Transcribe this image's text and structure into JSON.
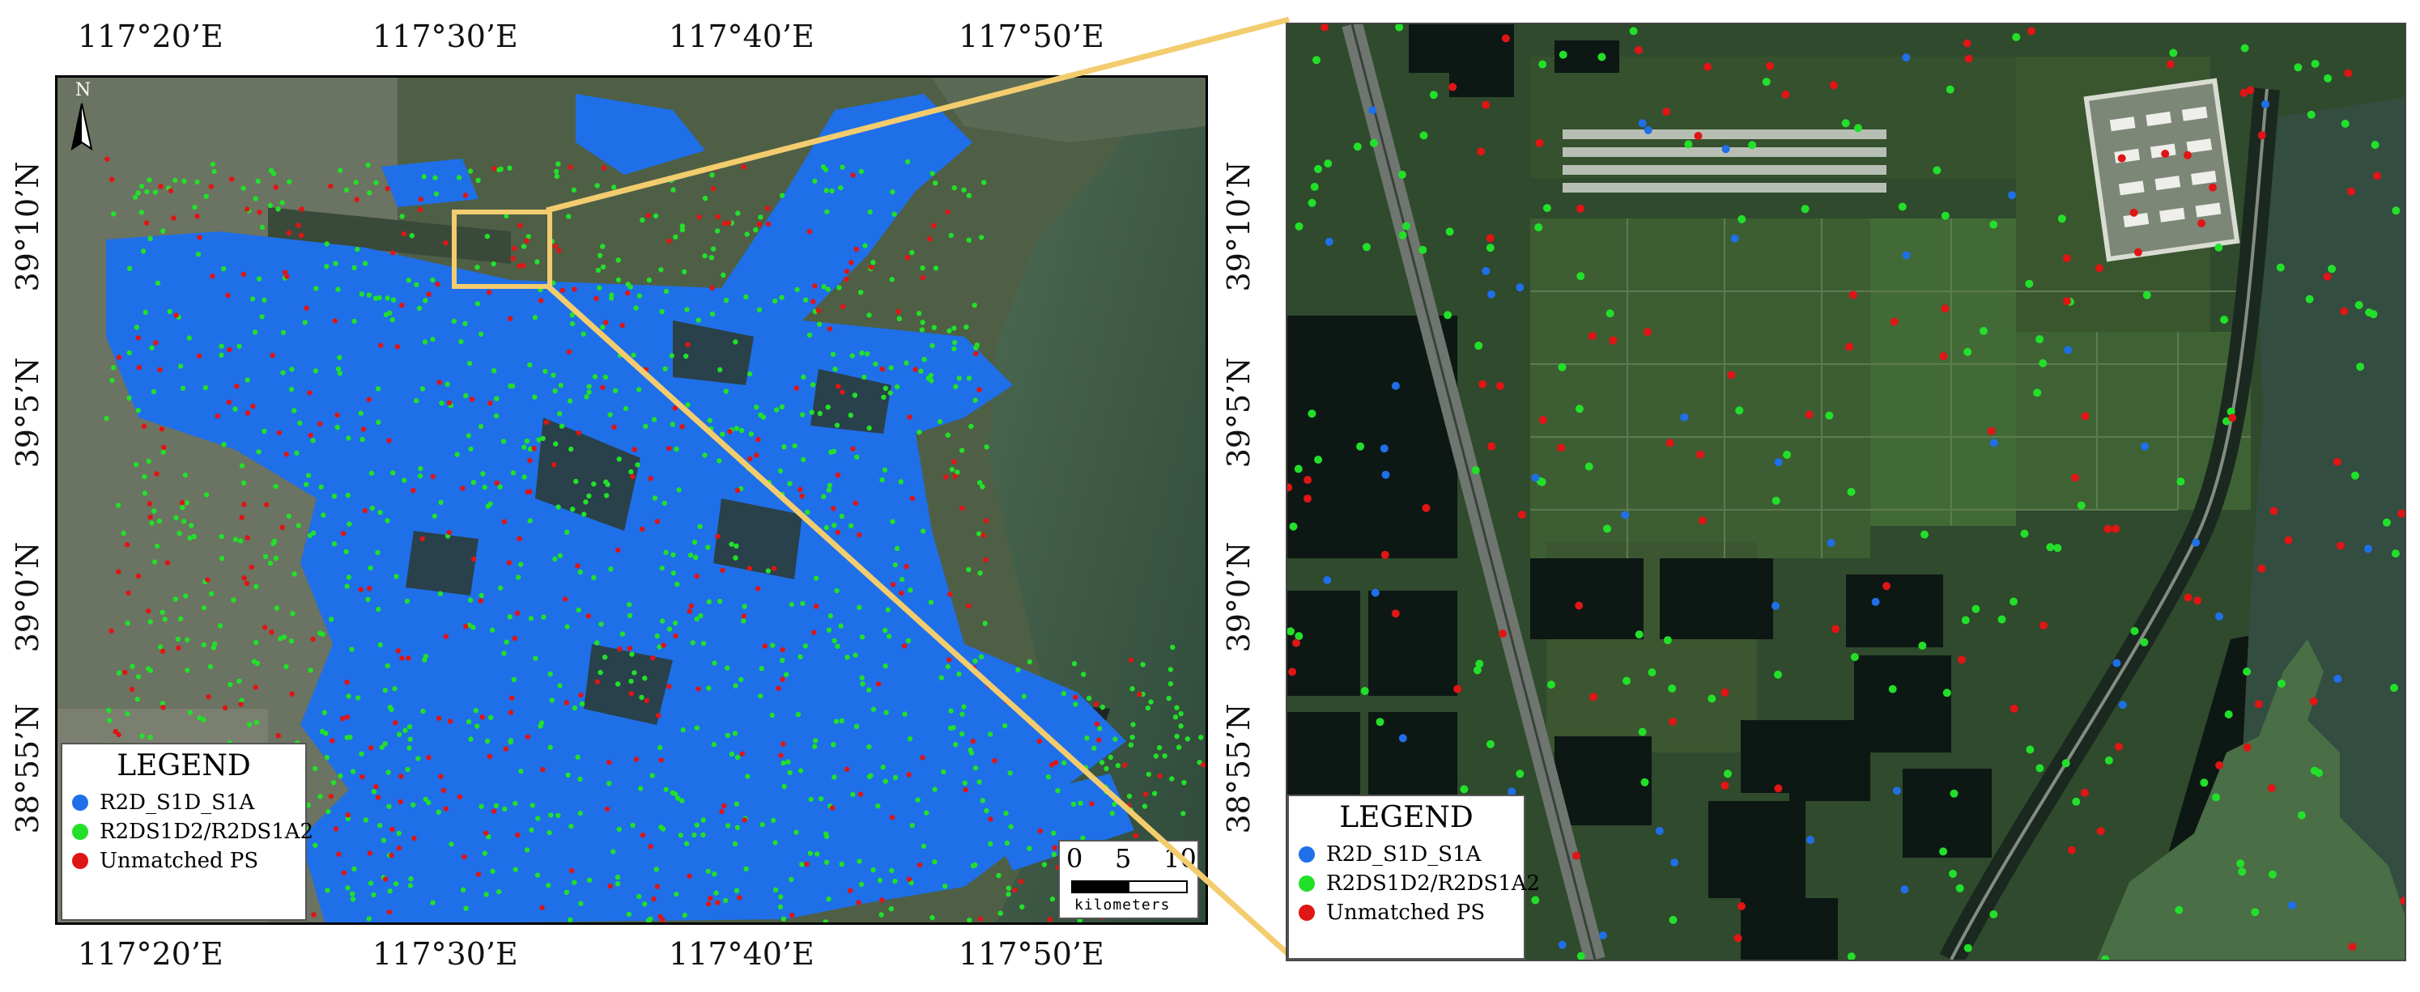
{
  "main_map": {
    "top_lon_labels": [
      "117°20’E",
      "117°30’E",
      "117°40’E",
      "117°50’E"
    ],
    "bottom_lon_labels": [
      "117°20’E",
      "117°30’E",
      "117°40’E",
      "117°50’E"
    ],
    "left_lat_labels": [
      "39°10’N",
      "39°5’N",
      "39°0’N",
      "38°55’N"
    ],
    "right_lat_labels": [
      "39°10’N",
      "39°5’N",
      "39°0’N",
      "38°55’N"
    ],
    "north_label": "N",
    "scale": {
      "labels": [
        "0",
        "5",
        "10"
      ],
      "unit": "kilometers"
    },
    "legend": {
      "title": "LEGEND",
      "items": [
        {
          "label": "R2D_S1D_S1A",
          "color": "#1f6fe8"
        },
        {
          "label": "R2DS1D2/R2DS1A2",
          "color": "#22e02a"
        },
        {
          "label": "Unmatched PS",
          "color": "#e01515"
        }
      ]
    }
  },
  "zoom_map": {
    "legend": {
      "title": "LEGEND",
      "items": [
        {
          "label": "R2D_S1D_S1A",
          "color": "#1f6fe8"
        },
        {
          "label": "R2DS1D2/R2DS1A2",
          "color": "#22e02a"
        },
        {
          "label": "Unmatched PS",
          "color": "#e01515"
        }
      ]
    }
  },
  "colors": {
    "highlight_box": "#f3cc6e",
    "blue_ps": "#1f6fe8",
    "green_ps": "#22e02a",
    "red_ps": "#e01515"
  }
}
